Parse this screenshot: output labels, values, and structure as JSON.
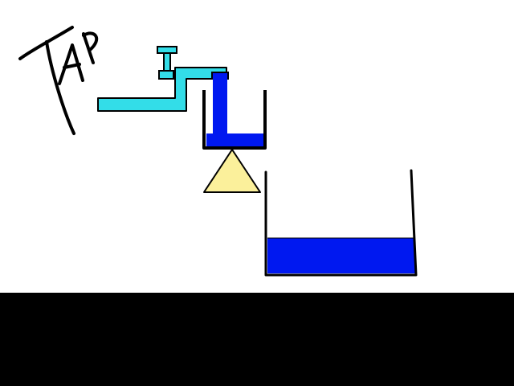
{
  "scene": {
    "tap_sign_text": "TAP",
    "colors": {
      "pipe": "#33dde8",
      "water": "#0018f0",
      "triangle": "#fbf09b",
      "outline": "#000000",
      "floor": "#000000",
      "background": "#ffffff"
    },
    "small_cup": {
      "water_level": 0.15
    },
    "big_tank": {
      "water_level": 0.35
    },
    "stream": {
      "flowing": true
    }
  }
}
